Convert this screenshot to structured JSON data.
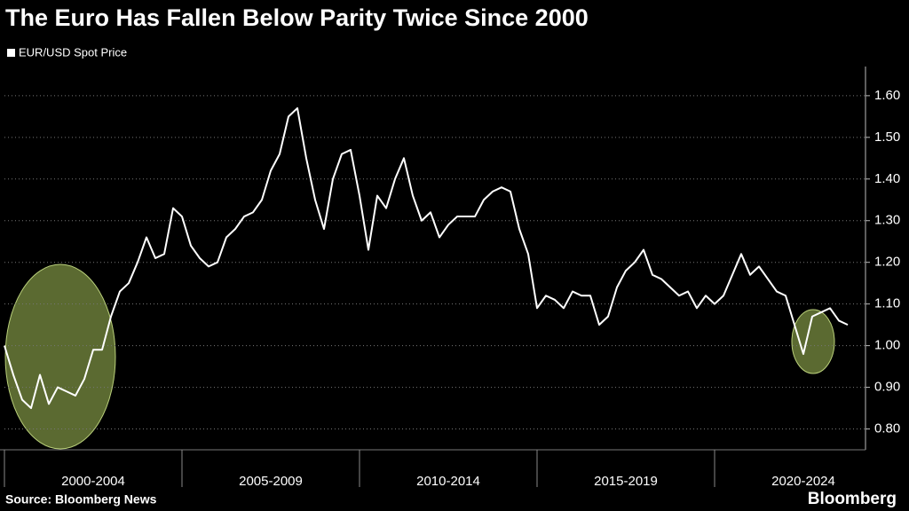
{
  "chart_data": {
    "type": "line",
    "title": "The Euro Has Fallen Below Parity Twice Since 2000",
    "source": "Source: Bloomberg News",
    "brand": "Bloomberg",
    "period_labels": [
      "2000-2004",
      "2005-2009",
      "2010-2014",
      "2015-2019",
      "2020-2024"
    ],
    "ylim": [
      0.75,
      1.67
    ],
    "yticks": [
      {
        "value": 0.8,
        "label": "0.80"
      },
      {
        "value": 0.9,
        "label": "0.90"
      },
      {
        "value": 1.0,
        "label": "1.00"
      },
      {
        "value": 1.1,
        "label": "1.10"
      },
      {
        "value": 1.2,
        "label": "1.20"
      },
      {
        "value": 1.3,
        "label": "1.30"
      },
      {
        "value": 1.4,
        "label": "1.40"
      },
      {
        "value": 1.5,
        "label": "1.50"
      },
      {
        "value": 1.6,
        "label": "1.60"
      }
    ],
    "grid": true,
    "series": [
      {
        "name": "EUR/USD Spot Price",
        "color": "#ffffff",
        "values": [
          1.0,
          0.93,
          0.87,
          0.85,
          0.93,
          0.86,
          0.9,
          0.89,
          0.88,
          0.92,
          0.99,
          0.99,
          1.07,
          1.13,
          1.15,
          1.2,
          1.26,
          1.21,
          1.22,
          1.33,
          1.31,
          1.24,
          1.21,
          1.19,
          1.2,
          1.26,
          1.28,
          1.31,
          1.32,
          1.35,
          1.42,
          1.46,
          1.55,
          1.57,
          1.45,
          1.35,
          1.28,
          1.4,
          1.46,
          1.47,
          1.36,
          1.23,
          1.36,
          1.33,
          1.4,
          1.45,
          1.36,
          1.3,
          1.32,
          1.26,
          1.29,
          1.31,
          1.31,
          1.31,
          1.35,
          1.37,
          1.38,
          1.37,
          1.28,
          1.22,
          1.09,
          1.12,
          1.11,
          1.09,
          1.13,
          1.12,
          1.12,
          1.05,
          1.07,
          1.14,
          1.18,
          1.2,
          1.23,
          1.17,
          1.16,
          1.14,
          1.12,
          1.13,
          1.09,
          1.12,
          1.1,
          1.12,
          1.17,
          1.22,
          1.17,
          1.19,
          1.16,
          1.13,
          1.12,
          1.05,
          0.98,
          1.07,
          1.08,
          1.09,
          1.06,
          1.05
        ]
      }
    ]
  }
}
